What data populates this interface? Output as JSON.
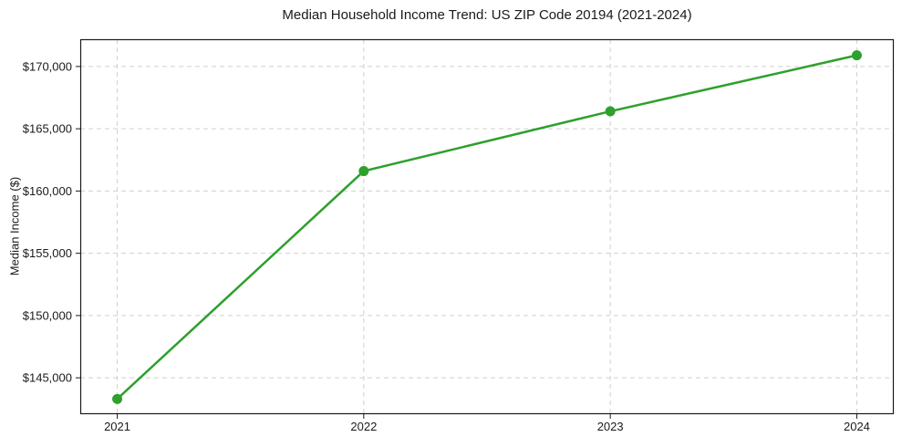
{
  "chart_data": {
    "type": "line",
    "title": "Median Household Income Trend: US ZIP Code 20194 (2021-2024)",
    "xlabel": "",
    "ylabel": "Median Income ($)",
    "x": [
      2021,
      2022,
      2023,
      2024
    ],
    "x_tick_labels": [
      "2021",
      "2022",
      "2023",
      "2024"
    ],
    "series": [
      {
        "name": "Median Household Income",
        "values": [
          143300,
          161600,
          166400,
          170900
        ]
      }
    ],
    "y_ticks": [
      {
        "value": 145000,
        "label": "$145,000"
      },
      {
        "value": 150000,
        "label": "$150,000"
      },
      {
        "value": 155000,
        "label": "$155,000"
      },
      {
        "value": 160000,
        "label": "$160,000"
      },
      {
        "value": 165000,
        "label": "$165,000"
      },
      {
        "value": 170000,
        "label": "$170,000"
      }
    ],
    "xlim": [
      2020.85,
      2024.15
    ],
    "ylim": [
      142080,
      172190
    ],
    "grid": true,
    "grid_style": "dashed",
    "legend_position": "none",
    "colors": {
      "line": "#2ea02c",
      "marker": "#2ea02c",
      "grid": "#cfcfcf",
      "axis": "#1a1a1a",
      "text": "#1a1a1a",
      "background": "#ffffff"
    }
  }
}
